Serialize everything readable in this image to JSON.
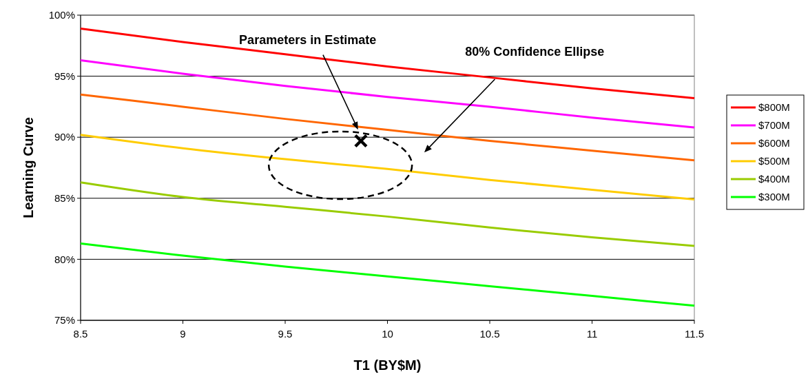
{
  "chart_data": {
    "type": "line",
    "xlabel": "T1 (BY$M)",
    "ylabel": "Learning Curve",
    "x": [
      8.5,
      9,
      9.5,
      10,
      10.5,
      11,
      11.5
    ],
    "series": [
      {
        "name": "$800M",
        "color": "#ff0000",
        "values": [
          98.9,
          97.8,
          96.8,
          95.8,
          94.9,
          94.0,
          93.2
        ]
      },
      {
        "name": "$700M",
        "color": "#ff00ff",
        "values": [
          96.3,
          95.2,
          94.2,
          93.3,
          92.5,
          91.6,
          90.8
        ]
      },
      {
        "name": "$600M",
        "color": "#ff6600",
        "values": [
          93.5,
          92.5,
          91.5,
          90.6,
          89.7,
          88.9,
          88.1
        ]
      },
      {
        "name": "$500M",
        "color": "#ffcc00",
        "values": [
          90.2,
          89.1,
          88.2,
          87.4,
          86.5,
          85.7,
          84.9
        ]
      },
      {
        "name": "$400M",
        "color": "#99cc00",
        "values": [
          86.3,
          85.1,
          84.3,
          83.5,
          82.6,
          81.8,
          81.1
        ]
      },
      {
        "name": "$300M",
        "color": "#00ff00",
        "values": [
          81.3,
          80.3,
          79.4,
          78.6,
          77.8,
          77.0,
          76.2
        ]
      },
      {
        "type": "scatter",
        "color": "#000000",
        "marker": "cross",
        "x": [
          9.87
        ],
        "values": [
          89.7
        ]
      }
    ],
    "xlim": [
      8.5,
      11.5
    ],
    "xticks": [
      8.5,
      9,
      9.5,
      10,
      10.5,
      11,
      11.5
    ],
    "ylim": [
      75,
      100
    ],
    "yticks": [
      {
        "value": 75,
        "label": "75%"
      },
      {
        "value": 80,
        "label": "80%"
      },
      {
        "value": 85,
        "label": "85%"
      },
      {
        "value": 90,
        "label": "90%"
      },
      {
        "value": 95,
        "label": "95%"
      },
      {
        "value": 100,
        "label": "100%"
      }
    ],
    "grid": "y",
    "legend": "right",
    "annotations": [
      "Parameters in Estimate",
      "80% Confidence Ellipse"
    ]
  }
}
